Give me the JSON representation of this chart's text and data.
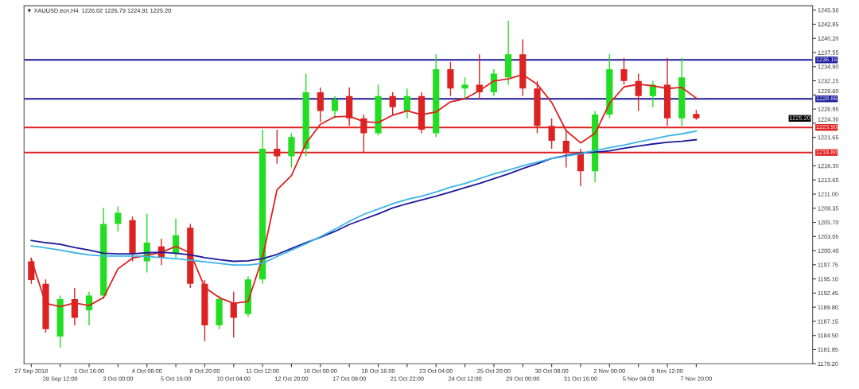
{
  "chart_data": {
    "type": "candlestick",
    "title": "▼ XAUUSD.ecn,H4  1226.02 1226.79 1224.91 1225.20",
    "categories": [
      "27 Sep 2018",
      null,
      "28 Sep 12:00",
      null,
      "1 Oct 16:00",
      null,
      "3 Oct 00:00",
      null,
      "4 Oct 08:00",
      null,
      "5 Oct 16:00",
      null,
      "8 Oct 20:00",
      null,
      "10 Oct 04:00",
      null,
      "11 Oct 12:00",
      null,
      "12 Oct 20:00",
      null,
      "16 Oct 00:00",
      null,
      "17 Oct 08:00",
      null,
      "18 Oct 16:00",
      null,
      "21 Oct 22:00",
      null,
      "23 Oct 04:00",
      null,
      "24 Oct 12:00",
      null,
      "25 Oct 20:00",
      null,
      "29 Oct 00:00",
      null,
      "30 Oct 08:00",
      null,
      "31 Oct 16:00",
      null,
      "2 Nov 00:00",
      null,
      "5 Nov 04:00",
      null,
      "6 Nov 12:00",
      null,
      "7 Nov 20:00"
    ],
    "ohlc": [
      [
        1198.4,
        1199.1,
        1194.2,
        1194.9
      ],
      [
        1194.2,
        1195.0,
        1185.0,
        1185.7
      ],
      [
        1184.3,
        1192.0,
        1182.2,
        1191.3
      ],
      [
        1191.3,
        1193.4,
        1186.4,
        1187.8
      ],
      [
        1189.2,
        1192.7,
        1186.4,
        1192.0
      ],
      [
        1192.0,
        1208.4,
        1191.3,
        1205.4
      ],
      [
        1205.4,
        1208.7,
        1204.0,
        1207.5
      ],
      [
        1206.1,
        1206.8,
        1198.4,
        1199.8
      ],
      [
        1198.4,
        1207.3,
        1196.3,
        1201.9
      ],
      [
        1201.2,
        1202.6,
        1197.7,
        1199.1
      ],
      [
        1199.8,
        1206.4,
        1199.1,
        1203.3
      ],
      [
        1204.7,
        1205.4,
        1193.4,
        1194.2
      ],
      [
        1194.2,
        1194.9,
        1183.4,
        1186.4
      ],
      [
        1186.4,
        1192.0,
        1185.7,
        1191.3
      ],
      [
        1190.6,
        1192.7,
        1184.1,
        1187.8
      ],
      [
        1188.5,
        1195.6,
        1188.0,
        1195.0
      ],
      [
        1195.0,
        1223.1,
        1194.2,
        1219.5
      ],
      [
        1219.5,
        1223.1,
        1216.7,
        1218.1
      ],
      [
        1218.1,
        1222.4,
        1216.0,
        1221.7
      ],
      [
        1219.5,
        1233.6,
        1218.1,
        1230.1
      ],
      [
        1230.1,
        1231.0,
        1224.5,
        1226.6
      ],
      [
        1226.6,
        1229.4,
        1225.2,
        1228.7
      ],
      [
        1229.4,
        1231.0,
        1223.8,
        1225.2
      ],
      [
        1225.2,
        1225.9,
        1218.8,
        1222.4
      ],
      [
        1222.4,
        1231.5,
        1222.0,
        1229.4
      ],
      [
        1229.4,
        1230.1,
        1225.9,
        1227.3
      ],
      [
        1226.6,
        1230.8,
        1225.2,
        1229.4
      ],
      [
        1229.4,
        1230.1,
        1222.4,
        1223.1
      ],
      [
        1222.4,
        1237.2,
        1221.7,
        1234.4
      ],
      [
        1234.4,
        1235.8,
        1229.4,
        1230.8
      ],
      [
        1230.8,
        1232.9,
        1228.7,
        1231.5
      ],
      [
        1231.5,
        1237.2,
        1228.7,
        1230.1
      ],
      [
        1230.1,
        1234.4,
        1229.4,
        1233.6
      ],
      [
        1232.9,
        1243.5,
        1231.5,
        1237.2
      ],
      [
        1237.2,
        1240.0,
        1229.4,
        1230.8
      ],
      [
        1230.8,
        1232.2,
        1222.4,
        1223.8
      ],
      [
        1223.8,
        1225.2,
        1219.5,
        1221.0
      ],
      [
        1221.0,
        1223.1,
        1216.0,
        1218.8
      ],
      [
        1218.8,
        1219.5,
        1212.5,
        1215.3
      ],
      [
        1215.3,
        1226.6,
        1213.2,
        1225.9
      ],
      [
        1225.9,
        1237.2,
        1225.2,
        1234.4
      ],
      [
        1234.4,
        1236.5,
        1231.5,
        1232.2
      ],
      [
        1232.2,
        1233.6,
        1226.6,
        1229.4
      ],
      [
        1229.4,
        1232.2,
        1227.3,
        1231.5
      ],
      [
        1231.5,
        1236.5,
        1223.8,
        1225.2
      ],
      [
        1225.2,
        1236.5,
        1223.8,
        1232.9
      ],
      [
        1226.02,
        1226.79,
        1224.91,
        1225.2
      ]
    ],
    "series": [
      {
        "type": "line",
        "color": "#e02020",
        "values": [
          1198.8,
          1190.5,
          1189.9,
          1190.6,
          1190.1,
          1191.6,
          1197.0,
          1199.0,
          1199.5,
          1200.1,
          1201.2,
          1200.0,
          1193.5,
          1191.6,
          1190.5,
          1190.9,
          1199.1,
          1211.8,
          1214.5,
          1220.5,
          1224.1,
          1225.5,
          1225.6,
          1224.6,
          1224.4,
          1225.8,
          1226.6,
          1225.9,
          1226.4,
          1228.3,
          1228.9,
          1230.4,
          1232.2,
          1232.6,
          1233.4,
          1231.6,
          1228.2,
          1222.9,
          1220.6,
          1222.4,
          1228.0,
          1231.1,
          1231.6,
          1231.3,
          1230.8,
          1231.0,
          1229.0
        ]
      },
      {
        "type": "line",
        "color": "#1a1a9c",
        "values": [
          1202.3,
          1201.9,
          1201.6,
          1201.0,
          1200.5,
          1199.9,
          1199.8,
          1199.8,
          1200.0,
          1200.1,
          1199.9,
          1199.6,
          1199.1,
          1198.7,
          1198.4,
          1198.5,
          1198.9,
          1199.7,
          1200.8,
          1201.9,
          1202.9,
          1204.0,
          1205.3,
          1206.3,
          1207.3,
          1208.4,
          1209.2,
          1209.9,
          1210.6,
          1211.4,
          1212.2,
          1213.0,
          1213.9,
          1214.8,
          1215.8,
          1216.7,
          1217.7,
          1218.2,
          1218.7,
          1218.9,
          1219.1,
          1219.6,
          1220.0,
          1220.4,
          1220.7,
          1220.9,
          1221.2
        ]
      },
      {
        "type": "line",
        "color": "#3cb4e6",
        "values": [
          1201.3,
          1200.9,
          1200.5,
          1200.0,
          1199.6,
          1199.4,
          1199.4,
          1199.4,
          1199.3,
          1199.1,
          1198.9,
          1198.6,
          1198.3,
          1198.0,
          1197.7,
          1197.7,
          1198.0,
          1199.3,
          1200.5,
          1201.7,
          1203.0,
          1204.4,
          1205.9,
          1207.2,
          1208.2,
          1209.2,
          1210.0,
          1210.6,
          1211.4,
          1212.3,
          1213.0,
          1213.9,
          1214.8,
          1215.5,
          1216.3,
          1217.0,
          1217.7,
          1218.1,
          1218.6,
          1219.2,
          1219.7,
          1220.2,
          1220.8,
          1221.3,
          1221.9,
          1222.3,
          1222.8
        ]
      }
    ],
    "ref_lines": [
      {
        "axis": "y",
        "value": 1236.16,
        "label": "1236.16",
        "color": "#1a1a9c"
      },
      {
        "axis": "y",
        "value": 1228.86,
        "label": "1228.86",
        "color": "#1a1a9c"
      },
      {
        "axis": "y",
        "value": 1223.5,
        "label": "1223.50",
        "color": "#e02020"
      },
      {
        "axis": "y",
        "value": 1218.8,
        "label": "1218.80",
        "color": "#e02020"
      }
    ],
    "annotations": [
      "1225.20"
    ],
    "ylim": [
      1179.2,
      1246.3
    ],
    "yticks": [
      {
        "value": 1245.5,
        "label": "1245.50"
      },
      {
        "value": 1242.85,
        "label": "1242.85"
      },
      {
        "value": 1240.2,
        "label": "1240.20"
      },
      {
        "value": 1237.55,
        "label": "1237.55"
      },
      {
        "value": 1234.9,
        "label": "1234.90"
      },
      {
        "value": 1232.25,
        "label": "1232.25"
      },
      {
        "value": 1229.6,
        "label": "1229.60"
      },
      {
        "value": 1226.95,
        "label": "1226.95"
      },
      {
        "value": 1224.3,
        "label": "1224.30"
      },
      {
        "value": 1221.65,
        "label": "1221.65"
      },
      {
        "value": 1216.3,
        "label": "1216.30"
      },
      {
        "value": 1213.65,
        "label": "1213.65"
      },
      {
        "value": 1211.0,
        "label": "1211.00"
      },
      {
        "value": 1208.35,
        "label": "1208.35"
      },
      {
        "value": 1205.7,
        "label": "1205.70"
      },
      {
        "value": 1203.05,
        "label": "1203.05"
      },
      {
        "value": 1200.4,
        "label": "1200.40"
      },
      {
        "value": 1197.75,
        "label": "1197.75"
      },
      {
        "value": 1195.1,
        "label": "1195.10"
      },
      {
        "value": 1192.45,
        "label": "1192.45"
      },
      {
        "value": 1189.8,
        "label": "1189.80"
      },
      {
        "value": 1187.15,
        "label": "1187.15"
      },
      {
        "value": 1184.5,
        "label": "1184.50"
      },
      {
        "value": 1181.85,
        "label": "1181.85"
      },
      {
        "value": 1179.2,
        "label": "1179.20"
      }
    ],
    "grid": false,
    "legend": false
  }
}
